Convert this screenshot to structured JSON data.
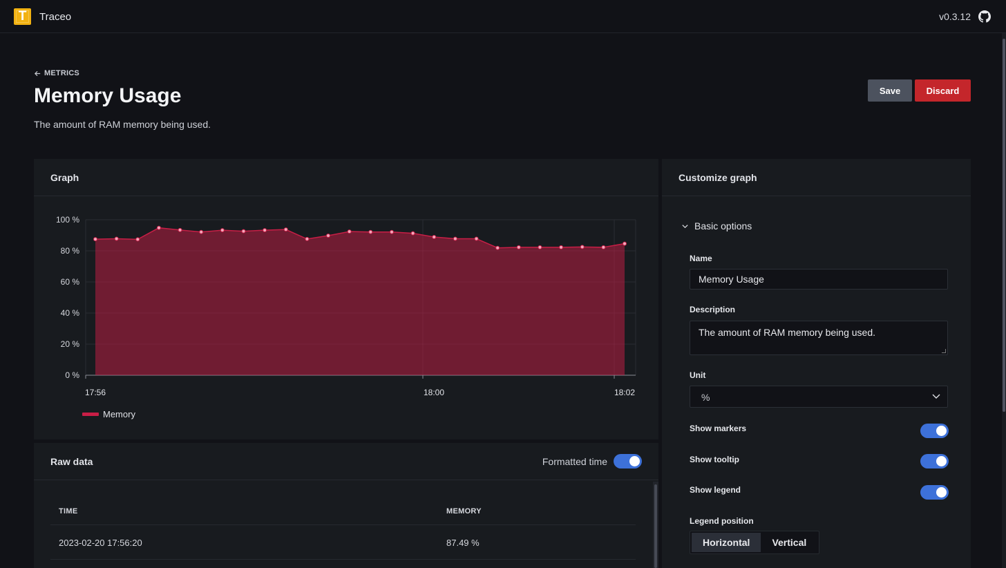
{
  "app": {
    "name": "Traceo",
    "logo_letter": "T",
    "version": "v0.3.12"
  },
  "header": {
    "back_label": "METRICS",
    "title": "Memory Usage",
    "description": "The amount of RAM memory being used.",
    "save_label": "Save",
    "discard_label": "Discard"
  },
  "graph_panel": {
    "title": "Graph",
    "legend_label": "Memory"
  },
  "chart_data": {
    "type": "area",
    "x_ticks": [
      "17:56",
      "18:00",
      "18:02"
    ],
    "y_ticks": [
      "0 %",
      "20 %",
      "40 %",
      "60 %",
      "80 %",
      "100 %"
    ],
    "ylim": [
      0,
      100
    ],
    "series": [
      {
        "name": "Memory",
        "color": "#c81e46",
        "values": [
          87.49,
          87.8,
          87.4,
          94.8,
          93.4,
          92.1,
          93.3,
          92.6,
          93.3,
          93.7,
          87.6,
          89.8,
          92.4,
          92.1,
          92.1,
          91.3,
          88.9,
          87.8,
          87.8,
          81.9,
          82.3,
          82.3,
          82.3,
          82.5,
          82.3,
          84.6
        ]
      }
    ],
    "grid": true,
    "legend": "bottom-left"
  },
  "raw_panel": {
    "title": "Raw data",
    "formatted_time_label": "Formatted time",
    "columns": [
      "TIME",
      "MEMORY"
    ],
    "rows": [
      {
        "time": "2023-02-20 17:56:20",
        "memory": "87.49 %"
      }
    ]
  },
  "customize_panel": {
    "title": "Customize graph",
    "section_label": "Basic options",
    "name_label": "Name",
    "name_value": "Memory Usage",
    "description_label": "Description",
    "description_value": "The amount of RAM memory being used.",
    "unit_label": "Unit",
    "unit_value": "%",
    "show_markers_label": "Show markers",
    "show_tooltip_label": "Show tooltip",
    "show_legend_label": "Show legend",
    "legend_position_label": "Legend position",
    "legend_position_options": [
      "Horizontal",
      "Vertical"
    ],
    "legend_position_selected": "Horizontal"
  },
  "colors": {
    "accent": "#3d71d9",
    "danger": "#c4262b",
    "series": "#c81e46"
  }
}
